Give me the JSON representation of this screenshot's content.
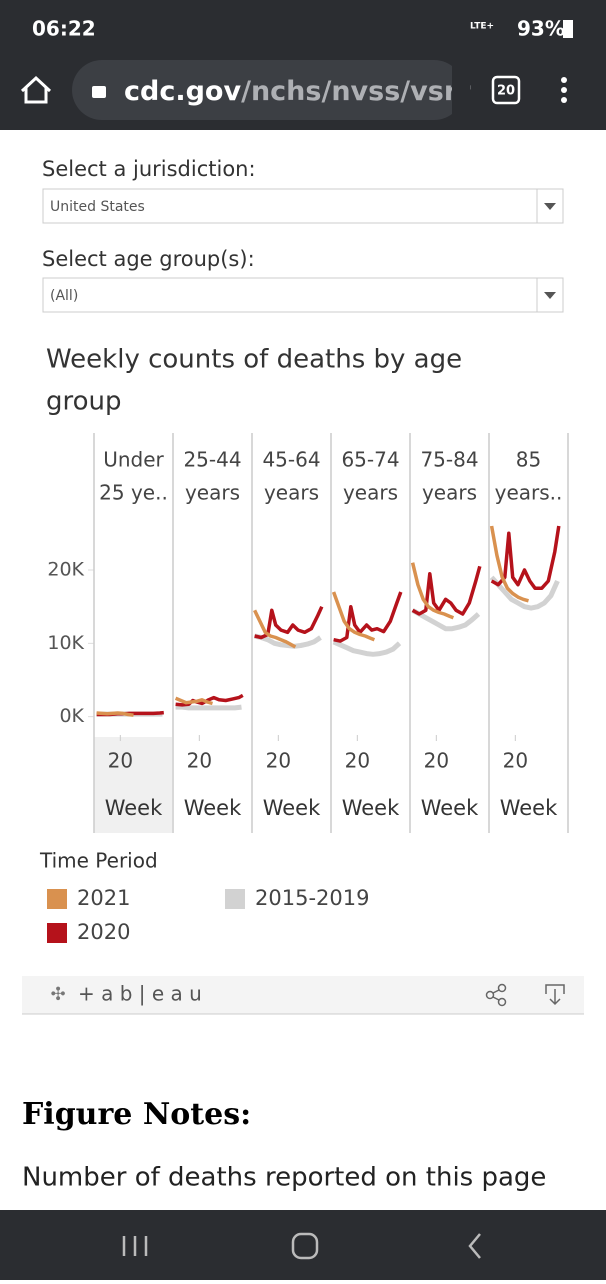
{
  "status": {
    "time": "06:22",
    "network": "LTE+",
    "battery": "93%"
  },
  "browser": {
    "domain": "cdc.gov",
    "path": "/nchs/nvss/vsrr",
    "tabs": "20"
  },
  "filters": [
    {
      "label": "Select a jurisdiction:",
      "value": "United States"
    },
    {
      "label": "Select age group(s):",
      "value": "(All)"
    }
  ],
  "chart_data": {
    "type": "small-multiples-line",
    "title": [
      "Weekly counts of deaths by age",
      "group"
    ],
    "legend_title": "Time Period",
    "x_label": "Week",
    "xlim": [
      0,
      60
    ],
    "xticks": [
      20
    ],
    "ylim": [
      -2500,
      27500
    ],
    "yticks": [
      {
        "value": 0,
        "label": "0K"
      },
      {
        "value": 10000,
        "label": "10K"
      },
      {
        "value": 20000,
        "label": "20K"
      }
    ],
    "series": [
      {
        "name": "2021",
        "color": "#d9914f"
      },
      {
        "name": "2020",
        "color": "#b5121b"
      },
      {
        "name": "2015-2019",
        "color": "#d2d2d2"
      }
    ],
    "panels": [
      {
        "label": [
          "Under",
          "25 ye.."
        ],
        "series": [
          {
            "x": [
              2,
              6,
              10,
              14,
              18,
              22,
              26,
              30
            ],
            "values": [
              500,
              450,
              400,
              450,
              500,
              450,
              300,
              200
            ]
          },
          {
            "x": [
              2,
              7,
              12,
              15,
              18,
              22,
              27,
              31,
              35,
              40,
              45,
              50,
              53
            ],
            "values": [
              300,
              300,
              300,
              350,
              400,
              400,
              450,
              450,
              450,
              450,
              450,
              500,
              550
            ]
          },
          {
            "x": [
              2,
              7,
              12,
              17,
              22,
              27,
              32,
              37,
              42,
              47,
              52
            ],
            "values": [
              350,
              350,
              350,
              350,
              350,
              350,
              350,
              350,
              350,
              350,
              350
            ]
          }
        ]
      },
      {
        "label": [
          "25-44",
          "years"
        ],
        "series": [
          {
            "x": [
              2,
              6,
              10,
              14,
              18,
              22,
              26,
              30
            ],
            "values": [
              2500,
              2200,
              1900,
              2000,
              2100,
              2300,
              2000,
              1800
            ]
          },
          {
            "x": [
              2,
              7,
              12,
              15,
              18,
              22,
              27,
              31,
              35,
              40,
              45,
              50,
              53
            ],
            "values": [
              1700,
              1600,
              1700,
              2200,
              2000,
              1800,
              2300,
              2600,
              2300,
              2200,
              2400,
              2600,
              2900
            ]
          },
          {
            "x": [
              2,
              7,
              12,
              17,
              22,
              27,
              32,
              37,
              42,
              47,
              52
            ],
            "values": [
              1300,
              1300,
              1200,
              1200,
              1200,
              1200,
              1200,
              1200,
              1200,
              1200,
              1300
            ]
          }
        ]
      },
      {
        "label": [
          "45-64",
          "years"
        ],
        "series": [
          {
            "x": [
              2,
              6,
              10,
              14,
              18,
              22,
              26,
              30,
              33
            ],
            "values": [
              14500,
              13000,
              11500,
              11000,
              10800,
              10500,
              10200,
              9800,
              9500
            ]
          },
          {
            "x": [
              2,
              7,
              12,
              15,
              18,
              22,
              27,
              31,
              35,
              40,
              45,
              50,
              53
            ],
            "values": [
              11000,
              10800,
              11200,
              14500,
              12500,
              11800,
              11500,
              12500,
              11800,
              11500,
              12000,
              13800,
              15000
            ]
          },
          {
            "x": [
              2,
              7,
              12,
              17,
              22,
              27,
              32,
              37,
              42,
              47,
              52
            ],
            "values": [
              11000,
              10800,
              10500,
              10000,
              9800,
              9700,
              9600,
              9700,
              9900,
              10200,
              10800
            ]
          }
        ]
      },
      {
        "label": [
          "65-74",
          "years"
        ],
        "series": [
          {
            "x": [
              2,
              6,
              10,
              14,
              18,
              22,
              26,
              30,
              33
            ],
            "values": [
              17000,
              15000,
              13000,
              12000,
              11500,
              11200,
              11000,
              10700,
              10500
            ]
          },
          {
            "x": [
              2,
              7,
              12,
              15,
              18,
              22,
              27,
              31,
              35,
              40,
              45,
              50,
              53
            ],
            "values": [
              10500,
              10300,
              10800,
              15000,
              12500,
              11500,
              12500,
              11800,
              12000,
              11600,
              13000,
              15500,
              17000
            ]
          },
          {
            "x": [
              2,
              7,
              12,
              17,
              22,
              27,
              32,
              37,
              42,
              47,
              52
            ],
            "values": [
              10200,
              9800,
              9400,
              9000,
              8800,
              8600,
              8500,
              8600,
              8800,
              9200,
              10000
            ]
          }
        ]
      },
      {
        "label": [
          "75-84",
          "years"
        ],
        "series": [
          {
            "x": [
              2,
              6,
              10,
              14,
              18,
              22,
              26,
              30,
              33
            ],
            "values": [
              21000,
              18000,
              16000,
              15000,
              14500,
              14200,
              14000,
              13700,
              13500
            ]
          },
          {
            "x": [
              2,
              7,
              12,
              15,
              18,
              22,
              27,
              31,
              35,
              40,
              45,
              50,
              53
            ],
            "values": [
              14500,
              14000,
              14500,
              19500,
              15500,
              14500,
              16000,
              15500,
              14500,
              14000,
              15500,
              18500,
              20500
            ]
          },
          {
            "x": [
              2,
              7,
              12,
              17,
              22,
              27,
              32,
              37,
              42,
              47,
              52
            ],
            "values": [
              14500,
              14000,
              13500,
              13000,
              12500,
              12000,
              12000,
              12200,
              12500,
              13200,
              14000
            ]
          }
        ]
      },
      {
        "label": [
          "85",
          "years.."
        ],
        "series": [
          {
            "x": [
              2,
              6,
              10,
              14,
              18,
              22,
              26,
              30
            ],
            "values": [
              26000,
              22000,
              19000,
              17500,
              16800,
              16300,
              16000,
              15800
            ]
          },
          {
            "x": [
              2,
              7,
              12,
              15,
              18,
              22,
              27,
              31,
              35,
              40,
              45,
              50,
              53
            ],
            "values": [
              18500,
              18000,
              19000,
              25000,
              19000,
              18000,
              20000,
              18500,
              17500,
              17500,
              18500,
              22500,
              26000
            ]
          },
          {
            "x": [
              2,
              7,
              12,
              17,
              22,
              27,
              32,
              37,
              42,
              47,
              52
            ],
            "values": [
              19000,
              18000,
              17000,
              16000,
              15500,
              15000,
              14800,
              15000,
              15500,
              16500,
              18500
            ]
          }
        ]
      }
    ]
  },
  "embed": {
    "logo": "+ a b | e a u"
  },
  "notes": {
    "heading": "Figure Notes:",
    "text": "Number of deaths reported on this page"
  }
}
